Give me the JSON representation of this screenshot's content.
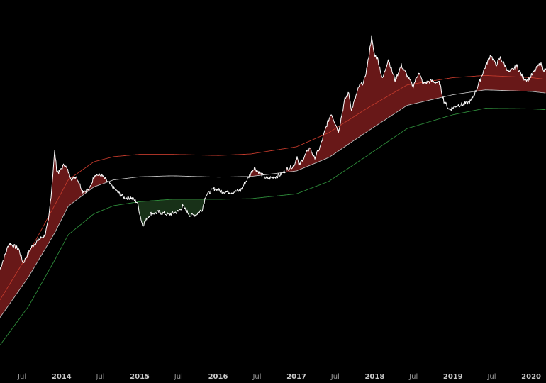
{
  "chart_data": {
    "type": "line",
    "title": "",
    "xlabel": "",
    "ylabel": "",
    "y_scale": "log",
    "grid": false,
    "legend": "none",
    "x_ticks": [
      {
        "date": "2013-07-01",
        "label": "Jul",
        "kind": "month"
      },
      {
        "date": "2014-01-01",
        "label": "2014",
        "kind": "year"
      },
      {
        "date": "2014-07-01",
        "label": "Jul",
        "kind": "month"
      },
      {
        "date": "2015-01-01",
        "label": "2015",
        "kind": "year"
      },
      {
        "date": "2015-07-01",
        "label": "Jul",
        "kind": "month"
      },
      {
        "date": "2016-01-01",
        "label": "2016",
        "kind": "year"
      },
      {
        "date": "2016-07-01",
        "label": "Jul",
        "kind": "month"
      },
      {
        "date": "2017-01-01",
        "label": "2017",
        "kind": "year"
      },
      {
        "date": "2017-07-01",
        "label": "Jul",
        "kind": "month"
      },
      {
        "date": "2018-01-01",
        "label": "2018",
        "kind": "year"
      },
      {
        "date": "2018-07-01",
        "label": "Jul",
        "kind": "month"
      },
      {
        "date": "2019-01-01",
        "label": "2019",
        "kind": "year"
      },
      {
        "date": "2019-07-01",
        "label": "Jul",
        "kind": "month"
      },
      {
        "date": "2020-01-01",
        "label": "2020",
        "kind": "year"
      }
    ],
    "x_range": [
      "2013-03-20",
      "2020-03-10"
    ],
    "y_range": [
      5,
      50000
    ],
    "colors": {
      "background": "#000000",
      "price": "#ffffff",
      "middle_band": "#bdbdbd",
      "upper_band": "#c0392b",
      "lower_band": "#2e8b3a",
      "overvalued_fill": "#7a1c1c",
      "undervalued_fill": "#1c3a1c"
    },
    "series": [
      {
        "role": "price",
        "x": [
          "2013-03-20",
          "2013-05-01",
          "2013-06-15",
          "2013-07-06",
          "2013-08-15",
          "2013-09-15",
          "2013-10-15",
          "2013-11-01",
          "2013-11-15",
          "2013-11-30",
          "2013-12-10",
          "2013-12-20",
          "2014-01-15",
          "2014-02-20",
          "2014-03-10",
          "2014-04-10",
          "2014-05-10",
          "2014-06-05",
          "2014-07-10",
          "2014-08-15",
          "2014-09-20",
          "2014-10-20",
          "2014-11-20",
          "2014-12-20",
          "2015-01-14",
          "2015-02-20",
          "2015-04-01",
          "2015-05-15",
          "2015-06-30",
          "2015-07-20",
          "2015-08-25",
          "2015-09-20",
          "2015-10-20",
          "2015-11-05",
          "2015-12-15",
          "2016-01-20",
          "2016-03-01",
          "2016-04-15",
          "2016-06-18",
          "2016-07-15",
          "2016-08-15",
          "2016-09-20",
          "2016-10-20",
          "2016-11-20",
          "2016-12-20",
          "2017-01-05",
          "2017-01-12",
          "2017-02-15",
          "2017-03-05",
          "2017-03-25",
          "2017-04-20",
          "2017-05-25",
          "2017-06-12",
          "2017-07-16",
          "2017-08-15",
          "2017-09-02",
          "2017-09-15",
          "2017-10-20",
          "2017-11-12",
          "2017-11-28",
          "2017-12-17",
          "2017-12-30",
          "2018-01-16",
          "2018-02-06",
          "2018-03-05",
          "2018-04-06",
          "2018-05-05",
          "2018-06-29",
          "2018-07-25",
          "2018-08-15",
          "2018-09-20",
          "2018-10-30",
          "2018-11-20",
          "2018-12-15",
          "2019-01-20",
          "2019-02-20",
          "2019-03-25",
          "2019-04-20",
          "2019-05-25",
          "2019-06-26",
          "2019-07-20",
          "2019-08-10",
          "2019-09-20",
          "2019-10-26",
          "2019-11-25",
          "2019-12-18",
          "2020-01-20",
          "2020-02-13",
          "2020-03-01",
          "2020-03-10"
        ],
        "y": [
          60,
          115,
          100,
          70,
          105,
          125,
          140,
          200,
          420,
          1150,
          700,
          680,
          830,
          560,
          620,
          420,
          440,
          640,
          620,
          500,
          410,
          360,
          360,
          320,
          180,
          240,
          250,
          235,
          255,
          290,
          230,
          235,
          270,
          380,
          450,
          420,
          410,
          430,
          760,
          660,
          580,
          600,
          640,
          740,
          800,
          1020,
          790,
          1080,
          1260,
          960,
          1250,
          2300,
          2950,
          1900,
          4200,
          4900,
          3200,
          5800,
          6500,
          9800,
          19500,
          13000,
          11300,
          6900,
          11400,
          6700,
          9800,
          5800,
          8200,
          6200,
          6600,
          6300,
          4000,
          3250,
          3600,
          3700,
          4000,
          5300,
          8700,
          12800,
          9800,
          11800,
          8200,
          9600,
          7100,
          6800,
          8700,
          10300,
          8700,
          8800
        ]
      },
      {
        "role": "upper_band",
        "x": [
          "2013-03-20",
          "2013-08-01",
          "2013-12-01",
          "2014-02-01",
          "2014-06-01",
          "2014-09-01",
          "2015-01-01",
          "2015-06-01",
          "2016-01-01",
          "2016-06-01",
          "2017-01-01",
          "2017-06-01",
          "2017-12-01",
          "2018-06-01",
          "2019-01-01",
          "2019-06-01",
          "2020-01-01",
          "2020-03-10"
        ],
        "y": [
          28,
          90,
          300,
          560,
          880,
          1000,
          1060,
          1060,
          1030,
          1070,
          1280,
          1820,
          3400,
          6000,
          7200,
          7600,
          7200,
          6900
        ]
      },
      {
        "role": "middle_band",
        "x": [
          "2013-03-20",
          "2013-08-01",
          "2013-12-01",
          "2014-02-01",
          "2014-06-01",
          "2014-09-01",
          "2015-01-01",
          "2015-06-01",
          "2016-01-01",
          "2016-06-01",
          "2017-01-01",
          "2017-06-01",
          "2017-12-01",
          "2018-06-01",
          "2019-01-01",
          "2019-06-01",
          "2020-01-01",
          "2020-03-10"
        ],
        "y": [
          18,
          50,
          150,
          290,
          470,
          560,
          605,
          620,
          600,
          610,
          700,
          980,
          1900,
          3600,
          4700,
          5300,
          5100,
          4900
        ]
      },
      {
        "role": "lower_band",
        "x": [
          "2013-03-20",
          "2013-08-01",
          "2013-12-01",
          "2014-02-01",
          "2014-06-01",
          "2014-09-01",
          "2015-01-01",
          "2015-06-01",
          "2016-01-01",
          "2016-06-01",
          "2017-01-01",
          "2017-06-01",
          "2017-12-01",
          "2018-06-01",
          "2019-01-01",
          "2019-06-01",
          "2020-01-01",
          "2020-03-10"
        ],
        "y": [
          9,
          24,
          76,
          142,
          240,
          294,
          325,
          345,
          345,
          350,
          395,
          540,
          1040,
          2020,
          2850,
          3350,
          3300,
          3230
        ]
      }
    ]
  }
}
